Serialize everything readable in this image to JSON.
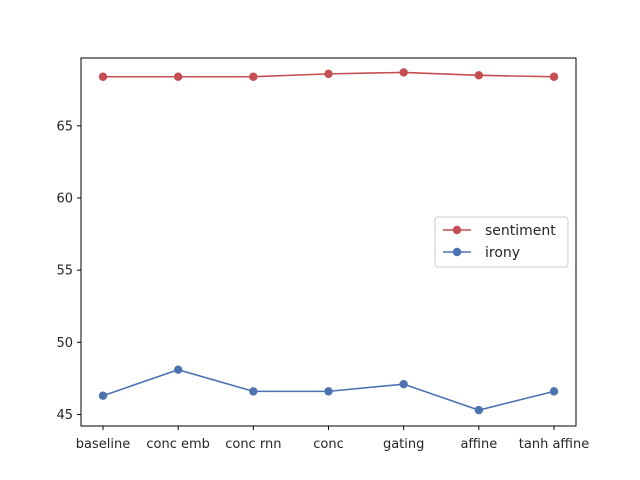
{
  "chart_data": {
    "type": "line",
    "title": "",
    "xlabel": "",
    "ylabel": "",
    "categories": [
      "baseline",
      "conc emb",
      "conc rnn",
      "conc",
      "gating",
      "affine",
      "tanh affine"
    ],
    "ylim": [
      44.2,
      69.7
    ],
    "yticks": [
      45,
      50,
      55,
      60,
      65
    ],
    "grid": false,
    "legend": "center-right",
    "series": [
      {
        "name": "sentiment",
        "color": "#c44e52",
        "values": [
          68.4,
          68.4,
          68.4,
          68.6,
          68.7,
          68.5,
          68.4
        ]
      },
      {
        "name": "irony",
        "color": "#4c72b0",
        "values": [
          46.3,
          48.1,
          46.6,
          46.6,
          47.1,
          45.3,
          46.6
        ]
      }
    ]
  }
}
